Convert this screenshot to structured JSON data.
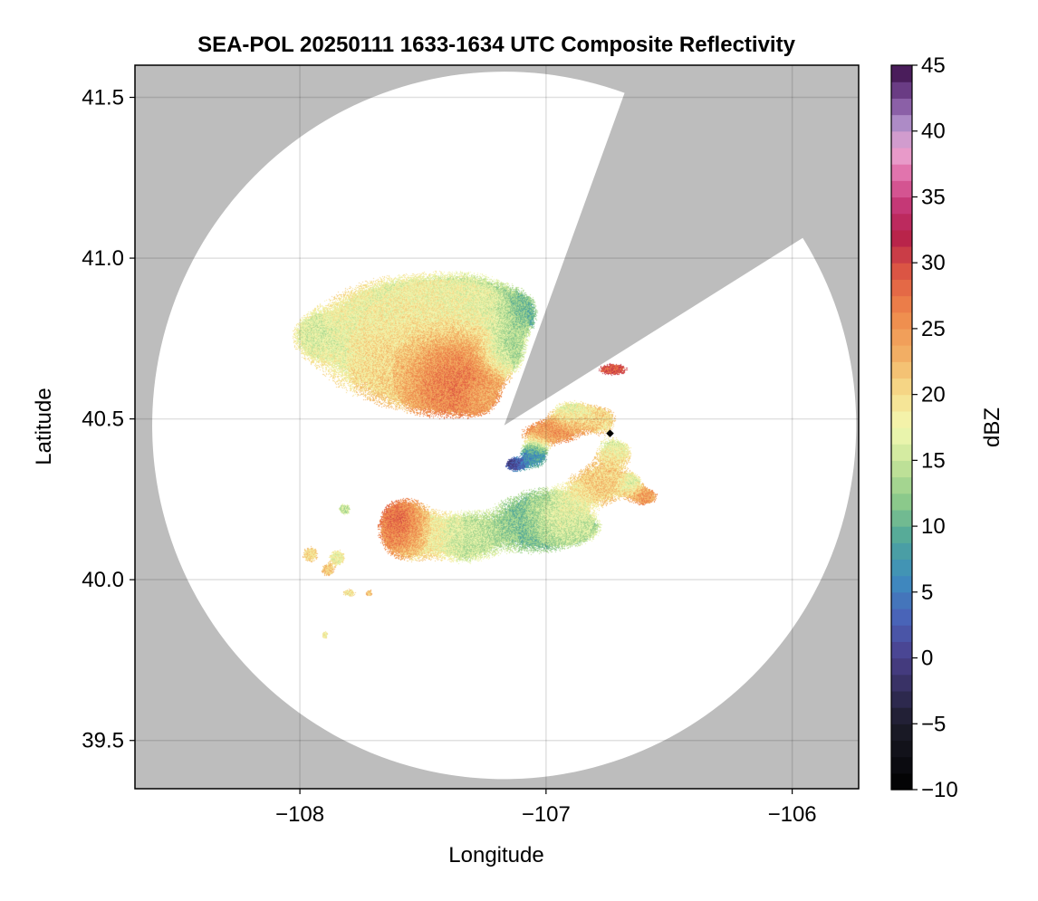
{
  "chart_data": {
    "type": "heatmap",
    "title": "SEA-POL 20250111 1633-1634 UTC Composite Reflectivity",
    "xlabel": "Longitude",
    "ylabel": "Latitude",
    "xlim": [
      -108.67,
      -105.73
    ],
    "ylim": [
      39.35,
      41.6
    ],
    "xticks": [
      -108,
      -107,
      -106
    ],
    "xtick_labels": [
      "−108",
      "−107",
      "−106"
    ],
    "yticks": [
      39.5,
      40.0,
      40.5,
      41.0,
      41.5
    ],
    "ytick_labels": [
      "39.5",
      "40.0",
      "40.5",
      "41.0",
      "41.5"
    ],
    "grid": true,
    "background_color": "#bdbdbd",
    "coverage_color": "#ffffff",
    "radar": {
      "center": [
        -107.17,
        40.48
      ],
      "range_lat_deg": 1.1,
      "range_lon_deg": 1.43,
      "blanked_sector_deg_clockwise_from_north": [
        20,
        58
      ]
    },
    "site_marker": {
      "lon": -106.74,
      "lat": 40.455,
      "color": "#000000"
    },
    "colorbar": {
      "label": "dBZ",
      "range": [
        -10,
        45
      ],
      "ticks": [
        -10,
        -5,
        0,
        5,
        10,
        15,
        20,
        25,
        30,
        35,
        40,
        45
      ],
      "tick_labels": [
        "−10",
        "−5",
        "0",
        "5",
        "10",
        "15",
        "20",
        "25",
        "30",
        "35",
        "40",
        "45"
      ],
      "colormap_stops": [
        {
          "v": -10,
          "c": "#000000"
        },
        {
          "v": -5,
          "c": "#1c1c2a"
        },
        {
          "v": 0,
          "c": "#4a3f8a"
        },
        {
          "v": 3,
          "c": "#4a62b8"
        },
        {
          "v": 6,
          "c": "#3d8cbf"
        },
        {
          "v": 9,
          "c": "#4fa69a"
        },
        {
          "v": 12,
          "c": "#8ecb8a"
        },
        {
          "v": 15,
          "c": "#c9e69b"
        },
        {
          "v": 17.5,
          "c": "#f3f8b2"
        },
        {
          "v": 20,
          "c": "#f6df8e"
        },
        {
          "v": 23,
          "c": "#f2b065"
        },
        {
          "v": 26,
          "c": "#ef8a4c"
        },
        {
          "v": 29,
          "c": "#e05c43"
        },
        {
          "v": 32,
          "c": "#b7224a"
        },
        {
          "v": 34,
          "c": "#c0306e"
        },
        {
          "v": 36.5,
          "c": "#df68a4"
        },
        {
          "v": 38.5,
          "c": "#eaa6d2"
        },
        {
          "v": 40.5,
          "c": "#b08fc9"
        },
        {
          "v": 42.5,
          "c": "#7a4b98"
        },
        {
          "v": 45,
          "c": "#3a0d47"
        }
      ]
    },
    "echo_cells": [
      {
        "lon": -107.92,
        "lat": 40.76,
        "sx": 0.06,
        "sy": 0.04,
        "dbz": 15
      },
      {
        "lon": -107.65,
        "lat": 40.74,
        "sx": 0.24,
        "sy": 0.14,
        "dbz": 19
      },
      {
        "lon": -107.42,
        "lat": 40.69,
        "sx": 0.16,
        "sy": 0.1,
        "dbz": 26
      },
      {
        "lon": -107.38,
        "lat": 40.64,
        "sx": 0.1,
        "sy": 0.07,
        "dbz": 31
      },
      {
        "lon": -107.52,
        "lat": 40.82,
        "sx": 0.16,
        "sy": 0.06,
        "dbz": 17
      },
      {
        "lon": -107.3,
        "lat": 40.85,
        "sx": 0.14,
        "sy": 0.07,
        "dbz": 16
      },
      {
        "lon": -107.12,
        "lat": 40.83,
        "sx": 0.05,
        "sy": 0.04,
        "dbz": 10
      },
      {
        "lon": -107.18,
        "lat": 40.72,
        "sx": 0.06,
        "sy": 0.05,
        "dbz": 11
      },
      {
        "lon": -107.28,
        "lat": 40.58,
        "sx": 0.05,
        "sy": 0.04,
        "dbz": 22
      },
      {
        "lon": -106.9,
        "lat": 40.52,
        "sx": 0.06,
        "sy": 0.03,
        "dbz": 18
      },
      {
        "lon": -106.78,
        "lat": 40.5,
        "sx": 0.05,
        "sy": 0.03,
        "dbz": 21
      },
      {
        "lon": -106.98,
        "lat": 40.46,
        "sx": 0.09,
        "sy": 0.03,
        "dbz": 26
      },
      {
        "lon": -107.05,
        "lat": 40.39,
        "sx": 0.04,
        "sy": 0.03,
        "dbz": 8
      },
      {
        "lon": -107.13,
        "lat": 40.36,
        "sx": 0.03,
        "sy": 0.015,
        "dbz": 0
      },
      {
        "lon": -106.72,
        "lat": 40.4,
        "sx": 0.05,
        "sy": 0.03,
        "dbz": 18
      },
      {
        "lon": -106.78,
        "lat": 40.3,
        "sx": 0.09,
        "sy": 0.05,
        "dbz": 22
      },
      {
        "lon": -106.66,
        "lat": 40.3,
        "sx": 0.03,
        "sy": 0.02,
        "dbz": 15
      },
      {
        "lon": -106.6,
        "lat": 40.26,
        "sx": 0.04,
        "sy": 0.02,
        "dbz": 25
      },
      {
        "lon": -106.73,
        "lat": 40.655,
        "sx": 0.05,
        "sy": 0.015,
        "dbz": 29
      },
      {
        "lon": -107.59,
        "lat": 40.17,
        "sx": 0.05,
        "sy": 0.045,
        "dbz": 33
      },
      {
        "lon": -107.55,
        "lat": 40.15,
        "sx": 0.09,
        "sy": 0.07,
        "dbz": 21
      },
      {
        "lon": -107.33,
        "lat": 40.13,
        "sx": 0.09,
        "sy": 0.06,
        "dbz": 16
      },
      {
        "lon": -107.05,
        "lat": 40.18,
        "sx": 0.13,
        "sy": 0.08,
        "dbz": 12
      },
      {
        "lon": -106.95,
        "lat": 40.2,
        "sx": 0.06,
        "sy": 0.04,
        "dbz": 20
      },
      {
        "lon": -106.88,
        "lat": 40.16,
        "sx": 0.07,
        "sy": 0.03,
        "dbz": 16
      },
      {
        "lon": -107.96,
        "lat": 40.08,
        "sx": 0.025,
        "sy": 0.02,
        "dbz": 20
      },
      {
        "lon": -107.85,
        "lat": 40.07,
        "sx": 0.025,
        "sy": 0.02,
        "dbz": 18
      },
      {
        "lon": -107.89,
        "lat": 40.03,
        "sx": 0.02,
        "sy": 0.015,
        "dbz": 22
      },
      {
        "lon": -107.8,
        "lat": 39.96,
        "sx": 0.02,
        "sy": 0.01,
        "dbz": 19
      },
      {
        "lon": -107.72,
        "lat": 39.96,
        "sx": 0.01,
        "sy": 0.01,
        "dbz": 22
      },
      {
        "lon": -107.9,
        "lat": 39.83,
        "sx": 0.01,
        "sy": 0.01,
        "dbz": 18
      },
      {
        "lon": -107.82,
        "lat": 40.22,
        "sx": 0.02,
        "sy": 0.015,
        "dbz": 15
      }
    ]
  }
}
